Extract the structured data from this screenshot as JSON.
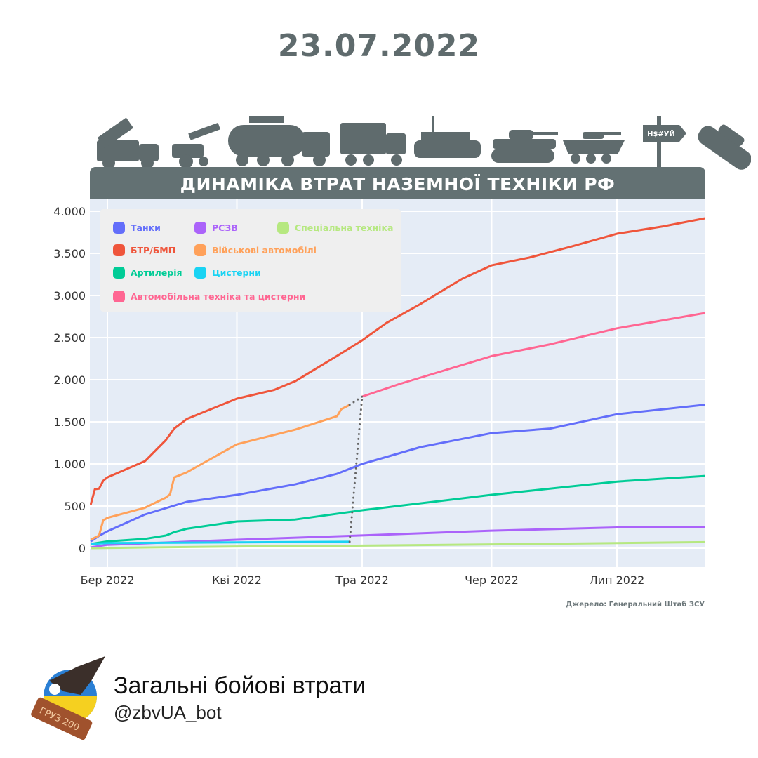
{
  "header": {
    "date": "23.07.2022"
  },
  "banner": {
    "title": "ДИНАМІКА ВТРАТ НАЗЕМНОЇ ТЕХНІКИ РФ",
    "sign_text": "Н$#УЙ"
  },
  "source": "Джерело: Генеральний Штаб ЗСУ",
  "footer": {
    "title": "Загальні бойові втрати",
    "handle": "@zbvUA_bot",
    "logo_text": "ГРУЗ 200"
  },
  "colors": {
    "banner": "#637173",
    "plot_bg": "#e5ecf6",
    "grid": "#ffffff",
    "date": "#5f6b6d"
  },
  "chart_data": {
    "type": "line",
    "title": "ДИНАМІКА ВТРАТ НАЗЕМНОЇ ТЕХНІКИ РФ",
    "xlabel": "",
    "ylabel": "",
    "xlim": [
      "2022-02-25",
      "2022-07-23"
    ],
    "ylim": [
      -200,
      4100
    ],
    "grid": true,
    "legend_placement": "top-left",
    "x_ticks": [
      {
        "date": "2022-03-01",
        "label": "Бер 2022"
      },
      {
        "date": "2022-04-01",
        "label": "Кві 2022"
      },
      {
        "date": "2022-05-01",
        "label": "Тра 2022"
      },
      {
        "date": "2022-06-01",
        "label": "Чер 2022"
      },
      {
        "date": "2022-07-01",
        "label": "Лип 2022"
      }
    ],
    "y_ticks": [
      {
        "value": 0,
        "label": "0"
      },
      {
        "value": 500,
        "label": "500"
      },
      {
        "value": 1000,
        "label": "1.000"
      },
      {
        "value": 1500,
        "label": "1.500"
      },
      {
        "value": 2000,
        "label": "2.000"
      },
      {
        "value": 2500,
        "label": "2.500"
      },
      {
        "value": 3000,
        "label": "3.000"
      },
      {
        "value": 3500,
        "label": "3.500"
      },
      {
        "value": 4000,
        "label": "4.000"
      }
    ],
    "series": [
      {
        "name": "Танки",
        "color": "#636efa",
        "points": [
          [
            "2022-02-25",
            80
          ],
          [
            "2022-02-27",
            146
          ],
          [
            "2022-03-01",
            200
          ],
          [
            "2022-03-10",
            400
          ],
          [
            "2022-03-20",
            550
          ],
          [
            "2022-04-01",
            633
          ],
          [
            "2022-04-15",
            758
          ],
          [
            "2022-04-25",
            883
          ],
          [
            "2022-05-01",
            1000
          ],
          [
            "2022-05-15",
            1200
          ],
          [
            "2022-06-01",
            1366
          ],
          [
            "2022-06-15",
            1420
          ],
          [
            "2022-07-01",
            1590
          ],
          [
            "2022-07-23",
            1708
          ]
        ]
      },
      {
        "name": "РСЗВ",
        "color": "#ab63fa",
        "points": [
          [
            "2022-02-25",
            10
          ],
          [
            "2022-03-01",
            40
          ],
          [
            "2022-04-01",
            100
          ],
          [
            "2022-05-01",
            151
          ],
          [
            "2022-06-01",
            207
          ],
          [
            "2022-07-01",
            246
          ],
          [
            "2022-07-23",
            250
          ]
        ]
      },
      {
        "name": "Спеціальна техніка",
        "color": "#b6e880",
        "points": [
          [
            "2022-02-25",
            0
          ],
          [
            "2022-04-01",
            20
          ],
          [
            "2022-05-01",
            30
          ],
          [
            "2022-06-01",
            45
          ],
          [
            "2022-07-23",
            72
          ]
        ]
      },
      {
        "name": "БТР/БМП",
        "color": "#ef553b",
        "points": [
          [
            "2022-02-25",
            516
          ],
          [
            "2022-02-26",
            700
          ],
          [
            "2022-02-27",
            706
          ],
          [
            "2022-02-28",
            800
          ],
          [
            "2022-03-01",
            841
          ],
          [
            "2022-03-10",
            1033
          ],
          [
            "2022-03-15",
            1283
          ],
          [
            "2022-03-17",
            1420
          ],
          [
            "2022-03-20",
            1533
          ],
          [
            "2022-04-01",
            1775
          ],
          [
            "2022-04-10",
            1880
          ],
          [
            "2022-04-15",
            1983
          ],
          [
            "2022-04-25",
            2283
          ],
          [
            "2022-05-01",
            2467
          ],
          [
            "2022-05-07",
            2680
          ],
          [
            "2022-05-15",
            2900
          ],
          [
            "2022-05-25",
            3200
          ],
          [
            "2022-06-01",
            3358
          ],
          [
            "2022-06-10",
            3450
          ],
          [
            "2022-06-20",
            3580
          ],
          [
            "2022-07-01",
            3733
          ],
          [
            "2022-07-12",
            3820
          ],
          [
            "2022-07-23",
            3925
          ]
        ]
      },
      {
        "name": "Військові автомобілі",
        "color": "#ffa15a",
        "points": [
          [
            "2022-02-25",
            100
          ],
          [
            "2022-02-27",
            150
          ],
          [
            "2022-02-28",
            330
          ],
          [
            "2022-03-01",
            360
          ],
          [
            "2022-03-10",
            480
          ],
          [
            "2022-03-15",
            600
          ],
          [
            "2022-03-16",
            640
          ],
          [
            "2022-03-17",
            840
          ],
          [
            "2022-03-20",
            900
          ],
          [
            "2022-04-01",
            1233
          ],
          [
            "2022-04-15",
            1408
          ],
          [
            "2022-04-25",
            1567
          ],
          [
            "2022-04-26",
            1650
          ],
          [
            "2022-04-28",
            1701
          ]
        ]
      },
      {
        "name": "Артилерія",
        "color": "#00cc96",
        "points": [
          [
            "2022-02-25",
            50
          ],
          [
            "2022-03-01",
            80
          ],
          [
            "2022-03-10",
            110
          ],
          [
            "2022-03-15",
            150
          ],
          [
            "2022-03-17",
            190
          ],
          [
            "2022-03-20",
            230
          ],
          [
            "2022-04-01",
            317
          ],
          [
            "2022-04-15",
            340
          ],
          [
            "2022-05-01",
            450
          ],
          [
            "2022-06-01",
            633
          ],
          [
            "2022-07-01",
            790
          ],
          [
            "2022-07-23",
            860
          ]
        ]
      },
      {
        "name": "Цистерни",
        "color": "#19d3f3",
        "points": [
          [
            "2022-02-25",
            50
          ],
          [
            "2022-03-01",
            60
          ],
          [
            "2022-04-28",
            76
          ]
        ]
      },
      {
        "name": "Автомобільна техніка та цистерни",
        "color": "#ff6692",
        "points": [
          [
            "2022-05-01",
            1800
          ],
          [
            "2022-05-10",
            1950
          ],
          [
            "2022-05-20",
            2100
          ],
          [
            "2022-06-01",
            2280
          ],
          [
            "2022-06-15",
            2420
          ],
          [
            "2022-07-01",
            2610
          ],
          [
            "2022-07-23",
            2800
          ]
        ]
      }
    ],
    "connectors": [
      {
        "from": [
          "2022-04-28",
          76
        ],
        "to": [
          "2022-05-01",
          1800
        ],
        "style": "dotted",
        "color": "#666666"
      },
      {
        "from": [
          "2022-04-28",
          1701
        ],
        "to": [
          "2022-05-01",
          1800
        ],
        "style": "dotted",
        "color": "#666666"
      }
    ]
  }
}
